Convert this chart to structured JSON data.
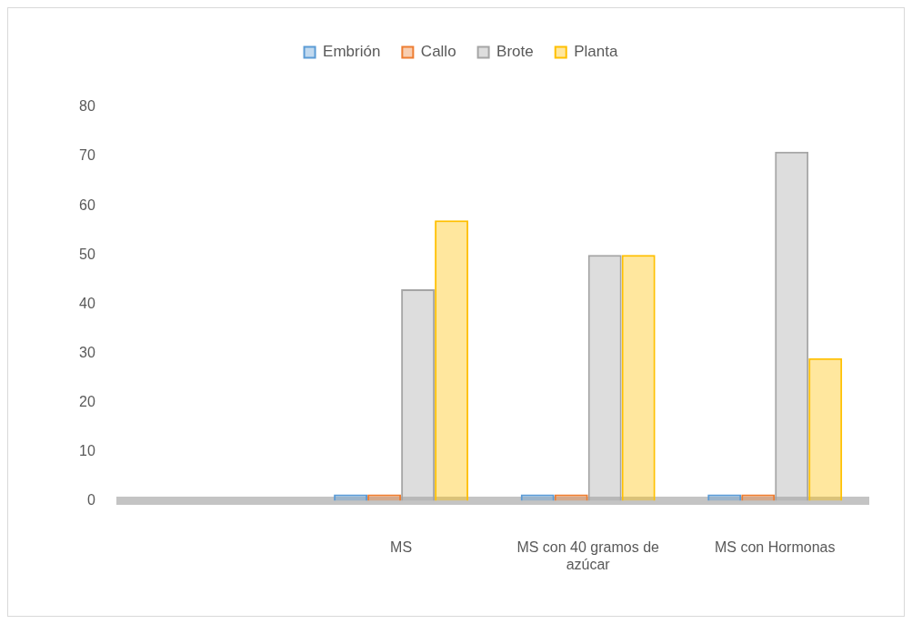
{
  "chart_data": {
    "type": "bar",
    "categories": [
      null,
      "MS",
      "MS con 40 gramos de azúcar",
      "MS con Hormonas"
    ],
    "series": [
      {
        "name": "Embrión",
        "color": "#5b9bd5",
        "values": [
          null,
          0,
          0,
          0
        ]
      },
      {
        "name": "Callo",
        "color": "#ed7d31",
        "values": [
          null,
          0,
          0,
          0
        ]
      },
      {
        "name": "Brote",
        "color": "#a5a5a5",
        "values": [
          null,
          43,
          50,
          71
        ]
      },
      {
        "name": "Planta",
        "color": "#ffc000",
        "values": [
          null,
          57,
          50,
          29
        ]
      }
    ],
    "ylim": [
      0,
      80
    ],
    "yticks": [
      0,
      10,
      20,
      30,
      40,
      50,
      60,
      70,
      80
    ],
    "grid": false,
    "legend": "top"
  }
}
